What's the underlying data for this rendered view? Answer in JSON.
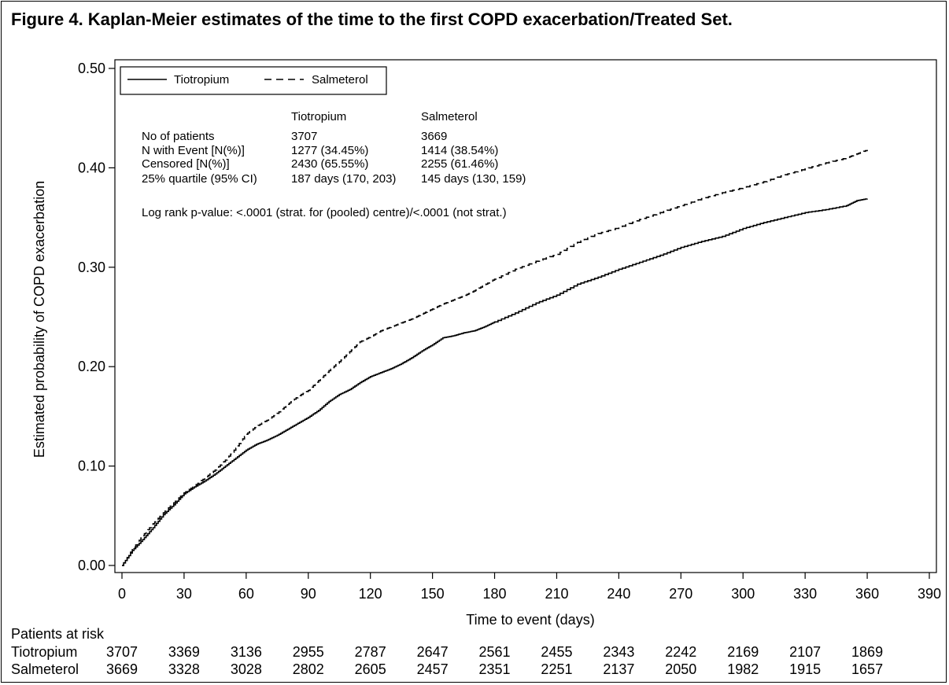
{
  "title": "Figure 4. Kaplan-Meier estimates of the time to the first COPD exacerbation/Treated Set.",
  "chart_data": {
    "type": "line",
    "xlabel": "Time to event (days)",
    "ylabel": "Estimated probability of COPD exacerbation",
    "xlim": [
      0,
      390
    ],
    "ylim": [
      0,
      0.5
    ],
    "x_ticks": [
      0,
      30,
      60,
      90,
      120,
      150,
      180,
      210,
      240,
      270,
      300,
      330,
      360,
      390
    ],
    "x_tick_labels": [
      "0",
      "30",
      "60",
      "90",
      "120",
      "150",
      "180",
      "210",
      "240",
      "270",
      "300",
      "330",
      "360",
      "390"
    ],
    "y_ticks": [
      0,
      0.1,
      0.2,
      0.3,
      0.4,
      0.5
    ],
    "y_tick_labels": [
      "0.00",
      "0.10",
      "0.20",
      "0.30",
      "0.40",
      "0.50"
    ],
    "grid": false,
    "legend_position": "top-left",
    "series": [
      {
        "name": "Tiotropium",
        "line_style": "solid",
        "x": [
          0,
          5,
          10,
          15,
          20,
          25,
          30,
          35,
          40,
          45,
          50,
          55,
          60,
          65,
          70,
          75,
          80,
          85,
          90,
          95,
          100,
          105,
          110,
          115,
          120,
          125,
          130,
          135,
          140,
          145,
          150,
          155,
          160,
          165,
          170,
          175,
          180,
          190,
          200,
          210,
          220,
          230,
          240,
          250,
          260,
          270,
          280,
          290,
          300,
          310,
          320,
          330,
          340,
          350,
          355,
          360
        ],
        "y": [
          0.0,
          0.015,
          0.026,
          0.038,
          0.051,
          0.061,
          0.072,
          0.079,
          0.085,
          0.092,
          0.1,
          0.108,
          0.116,
          0.122,
          0.126,
          0.131,
          0.137,
          0.143,
          0.149,
          0.156,
          0.165,
          0.172,
          0.177,
          0.184,
          0.19,
          0.194,
          0.198,
          0.203,
          0.209,
          0.216,
          0.222,
          0.229,
          0.231,
          0.234,
          0.236,
          0.24,
          0.245,
          0.254,
          0.264,
          0.272,
          0.283,
          0.29,
          0.298,
          0.305,
          0.312,
          0.32,
          0.326,
          0.331,
          0.339,
          0.345,
          0.35,
          0.355,
          0.358,
          0.362,
          0.367,
          0.369
        ]
      },
      {
        "name": "Salmeterol",
        "line_style": "dashed",
        "x": [
          0,
          5,
          10,
          15,
          20,
          25,
          30,
          35,
          40,
          45,
          50,
          55,
          60,
          65,
          70,
          75,
          80,
          85,
          90,
          95,
          100,
          105,
          110,
          115,
          120,
          125,
          130,
          135,
          140,
          145,
          150,
          155,
          160,
          165,
          170,
          175,
          180,
          190,
          200,
          210,
          220,
          230,
          240,
          250,
          260,
          270,
          280,
          290,
          300,
          310,
          320,
          330,
          340,
          350,
          355,
          360
        ],
        "y": [
          0.0,
          0.016,
          0.03,
          0.042,
          0.053,
          0.063,
          0.073,
          0.08,
          0.088,
          0.096,
          0.106,
          0.118,
          0.132,
          0.14,
          0.146,
          0.153,
          0.162,
          0.17,
          0.176,
          0.186,
          0.196,
          0.205,
          0.215,
          0.225,
          0.23,
          0.236,
          0.24,
          0.244,
          0.248,
          0.253,
          0.258,
          0.263,
          0.267,
          0.271,
          0.276,
          0.282,
          0.288,
          0.298,
          0.306,
          0.313,
          0.325,
          0.334,
          0.34,
          0.348,
          0.355,
          0.362,
          0.369,
          0.375,
          0.38,
          0.386,
          0.393,
          0.399,
          0.405,
          0.41,
          0.414,
          0.418
        ]
      }
    ],
    "stats_table": {
      "header": [
        "",
        "Tiotropium",
        "Salmeterol"
      ],
      "rows": [
        [
          "No of patients",
          "3707",
          "3669"
        ],
        [
          "N with Event [N(%)]",
          "1277 (34.45%)",
          "1414 (38.54%)"
        ],
        [
          "Censored [N(%)]",
          "2430 (65.55%)",
          "2255 (61.46%)"
        ],
        [
          "25% quartile (95% CI)",
          "187 days (170, 203)",
          "145 days (130, 159)"
        ]
      ]
    },
    "logrank_note": "Log rank p-value: <.0001 (strat. for (pooled) centre)/<.0001 (not strat.)"
  },
  "risk_table": {
    "label": "Patients at risk",
    "times": [
      0,
      30,
      60,
      90,
      120,
      150,
      180,
      210,
      240,
      270,
      300,
      330,
      360
    ],
    "rows": [
      {
        "name": "Tiotropium",
        "values": [
          "3707",
          "3369",
          "3136",
          "2955",
          "2787",
          "2647",
          "2561",
          "2455",
          "2343",
          "2242",
          "2169",
          "2107",
          "1869"
        ]
      },
      {
        "name": "Salmeterol",
        "values": [
          "3669",
          "3328",
          "3028",
          "2802",
          "2605",
          "2457",
          "2351",
          "2251",
          "2137",
          "2050",
          "1982",
          "1915",
          "1657"
        ]
      }
    ]
  }
}
